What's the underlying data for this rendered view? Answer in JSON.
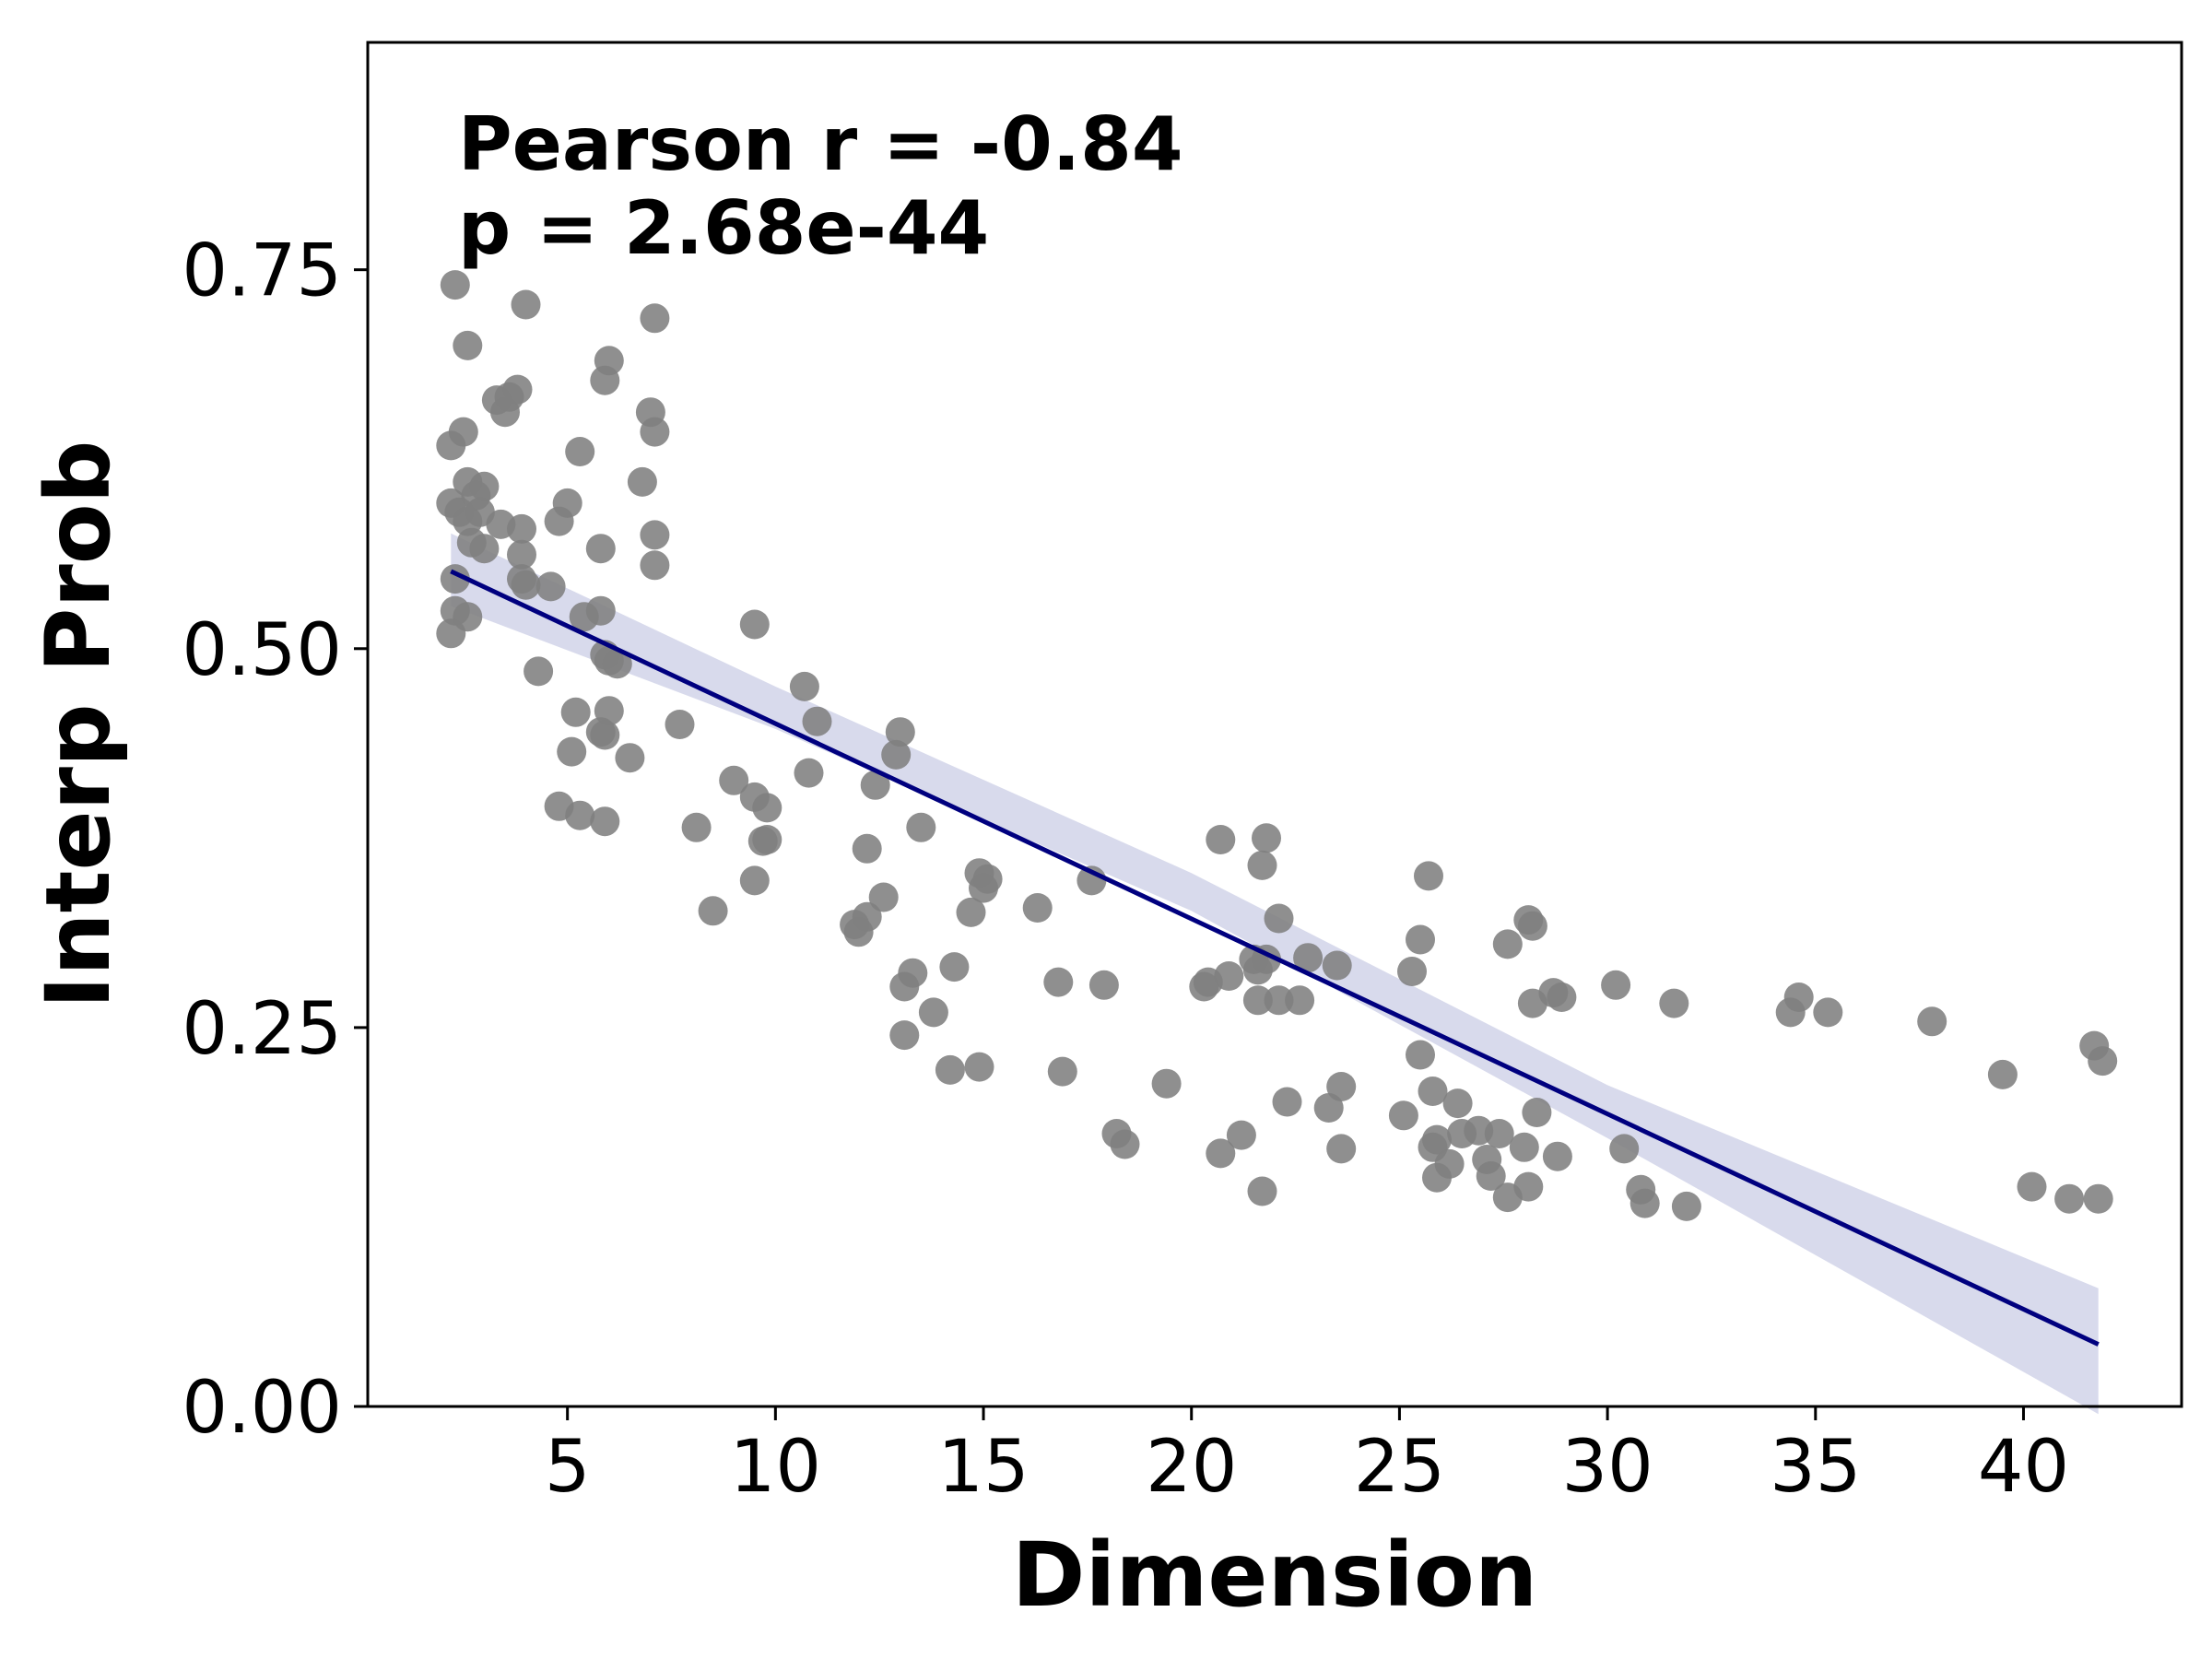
{
  "chart_data": {
    "type": "scatter",
    "title": "",
    "xlabel": "Dimension",
    "ylabel": "Interp Prob",
    "xlim": [
      0.2,
      43.8
    ],
    "ylim": [
      0.0,
      0.9
    ],
    "xticks": [
      5,
      10,
      15,
      20,
      25,
      30,
      35,
      40
    ],
    "xtick_labels": [
      "5",
      "10",
      "15",
      "20",
      "25",
      "30",
      "35",
      "40"
    ],
    "yticks": [
      0.0,
      0.25,
      0.5,
      0.75
    ],
    "ytick_labels": [
      "0.00",
      "0.25",
      "0.50",
      "0.75"
    ],
    "grid": false,
    "legend": "none",
    "annotations": [
      "Pearson r = -0.84",
      "p = 2.68e-44"
    ],
    "colors": {
      "points": "#808080",
      "regression_line": "#00007f",
      "confidence_band": "#b8bbdd"
    },
    "regression": {
      "x": [
        2.2,
        41.8
      ],
      "y": [
        0.551,
        0.041
      ]
    },
    "confidence_band": {
      "x": [
        2.2,
        10,
        20,
        30,
        41.8
      ],
      "lower": [
        0.528,
        0.447,
        0.327,
        0.177,
        -0.005
      ],
      "upper": [
        0.576,
        0.475,
        0.352,
        0.212,
        0.078
      ]
    },
    "points": [
      [
        2.3,
        0.74
      ],
      [
        4.0,
        0.727
      ],
      [
        7.1,
        0.718
      ],
      [
        2.6,
        0.7
      ],
      [
        6.0,
        0.69
      ],
      [
        5.9,
        0.677
      ],
      [
        3.8,
        0.671
      ],
      [
        3.3,
        0.664
      ],
      [
        3.6,
        0.666
      ],
      [
        7.0,
        0.656
      ],
      [
        3.5,
        0.656
      ],
      [
        2.5,
        0.643
      ],
      [
        7.1,
        0.643
      ],
      [
        2.2,
        0.634
      ],
      [
        5.3,
        0.63
      ],
      [
        6.8,
        0.61
      ],
      [
        2.6,
        0.61
      ],
      [
        3.0,
        0.607
      ],
      [
        2.8,
        0.601
      ],
      [
        2.2,
        0.596
      ],
      [
        5.0,
        0.596
      ],
      [
        2.9,
        0.59
      ],
      [
        2.4,
        0.59
      ],
      [
        2.6,
        0.584
      ],
      [
        4.8,
        0.584
      ],
      [
        3.4,
        0.582
      ],
      [
        3.9,
        0.579
      ],
      [
        7.1,
        0.575
      ],
      [
        2.7,
        0.57
      ],
      [
        3.0,
        0.566
      ],
      [
        5.8,
        0.566
      ],
      [
        3.9,
        0.562
      ],
      [
        2.3,
        0.546
      ],
      [
        3.9,
        0.546
      ],
      [
        4.0,
        0.542
      ],
      [
        4.6,
        0.541
      ],
      [
        7.1,
        0.555
      ],
      [
        2.3,
        0.525
      ],
      [
        2.6,
        0.521
      ],
      [
        5.8,
        0.525
      ],
      [
        5.4,
        0.521
      ],
      [
        9.5,
        0.516
      ],
      [
        2.2,
        0.51
      ],
      [
        5.9,
        0.496
      ],
      [
        6.0,
        0.492
      ],
      [
        6.2,
        0.49
      ],
      [
        4.3,
        0.485
      ],
      [
        10.7,
        0.475
      ],
      [
        5.2,
        0.458
      ],
      [
        6.0,
        0.459
      ],
      [
        11.0,
        0.452
      ],
      [
        7.7,
        0.45
      ],
      [
        5.8,
        0.445
      ],
      [
        5.9,
        0.443
      ],
      [
        13.0,
        0.445
      ],
      [
        5.1,
        0.432
      ],
      [
        12.9,
        0.43
      ],
      [
        6.5,
        0.428
      ],
      [
        10.8,
        0.418
      ],
      [
        9.0,
        0.413
      ],
      [
        12.4,
        0.41
      ],
      [
        9.5,
        0.402
      ],
      [
        9.8,
        0.395
      ],
      [
        4.8,
        0.396
      ],
      [
        5.3,
        0.39
      ],
      [
        5.9,
        0.386
      ],
      [
        8.1,
        0.382
      ],
      [
        13.5,
        0.382
      ],
      [
        9.7,
        0.373
      ],
      [
        9.8,
        0.374
      ],
      [
        20.7,
        0.374
      ],
      [
        21.8,
        0.375
      ],
      [
        12.2,
        0.368
      ],
      [
        21.7,
        0.357
      ],
      [
        14.9,
        0.352
      ],
      [
        25.7,
        0.35
      ],
      [
        15.1,
        0.348
      ],
      [
        17.6,
        0.347
      ],
      [
        9.5,
        0.347
      ],
      [
        15.0,
        0.342
      ],
      [
        12.6,
        0.336
      ],
      [
        16.3,
        0.329
      ],
      [
        8.5,
        0.327
      ],
      [
        14.7,
        0.326
      ],
      [
        22.1,
        0.322
      ],
      [
        28.1,
        0.321
      ],
      [
        28.2,
        0.317
      ],
      [
        12.2,
        0.323
      ],
      [
        11.9,
        0.318
      ],
      [
        12.0,
        0.313
      ],
      [
        25.5,
        0.308
      ],
      [
        27.6,
        0.305
      ],
      [
        22.8,
        0.296
      ],
      [
        21.5,
        0.295
      ],
      [
        21.8,
        0.295
      ],
      [
        23.5,
        0.291
      ],
      [
        14.3,
        0.29
      ],
      [
        21.6,
        0.288
      ],
      [
        25.3,
        0.287
      ],
      [
        13.3,
        0.286
      ],
      [
        20.9,
        0.284
      ],
      [
        20.4,
        0.28
      ],
      [
        13.1,
        0.277
      ],
      [
        16.8,
        0.28
      ],
      [
        17.9,
        0.278
      ],
      [
        20.3,
        0.277
      ],
      [
        30.2,
        0.278
      ],
      [
        28.7,
        0.273
      ],
      [
        28.9,
        0.27
      ],
      [
        21.6,
        0.268
      ],
      [
        22.1,
        0.268
      ],
      [
        22.6,
        0.268
      ],
      [
        28.2,
        0.266
      ],
      [
        31.6,
        0.266
      ],
      [
        34.6,
        0.27
      ],
      [
        34.4,
        0.26
      ],
      [
        35.3,
        0.26
      ],
      [
        37.8,
        0.254
      ],
      [
        13.8,
        0.26
      ],
      [
        13.1,
        0.245
      ],
      [
        41.7,
        0.238
      ],
      [
        25.5,
        0.232
      ],
      [
        41.9,
        0.228
      ],
      [
        14.9,
        0.224
      ],
      [
        14.2,
        0.222
      ],
      [
        16.9,
        0.221
      ],
      [
        39.5,
        0.219
      ],
      [
        19.4,
        0.213
      ],
      [
        23.6,
        0.211
      ],
      [
        25.8,
        0.208
      ],
      [
        22.3,
        0.201
      ],
      [
        26.4,
        0.2
      ],
      [
        23.3,
        0.197
      ],
      [
        28.3,
        0.194
      ],
      [
        25.1,
        0.192
      ],
      [
        27.4,
        0.18
      ],
      [
        26.5,
        0.18
      ],
      [
        26.9,
        0.182
      ],
      [
        18.2,
        0.18
      ],
      [
        21.2,
        0.179
      ],
      [
        25.9,
        0.176
      ],
      [
        18.4,
        0.173
      ],
      [
        25.8,
        0.171
      ],
      [
        23.6,
        0.17
      ],
      [
        28.0,
        0.171
      ],
      [
        30.4,
        0.17
      ],
      [
        20.7,
        0.167
      ],
      [
        28.8,
        0.165
      ],
      [
        27.1,
        0.163
      ],
      [
        26.2,
        0.16
      ],
      [
        25.9,
        0.151
      ],
      [
        27.2,
        0.152
      ],
      [
        28.1,
        0.145
      ],
      [
        40.2,
        0.145
      ],
      [
        30.8,
        0.143
      ],
      [
        21.7,
        0.142
      ],
      [
        27.6,
        0.138
      ],
      [
        41.1,
        0.137
      ],
      [
        41.8,
        0.137
      ],
      [
        30.9,
        0.134
      ],
      [
        31.9,
        0.132
      ]
    ]
  }
}
